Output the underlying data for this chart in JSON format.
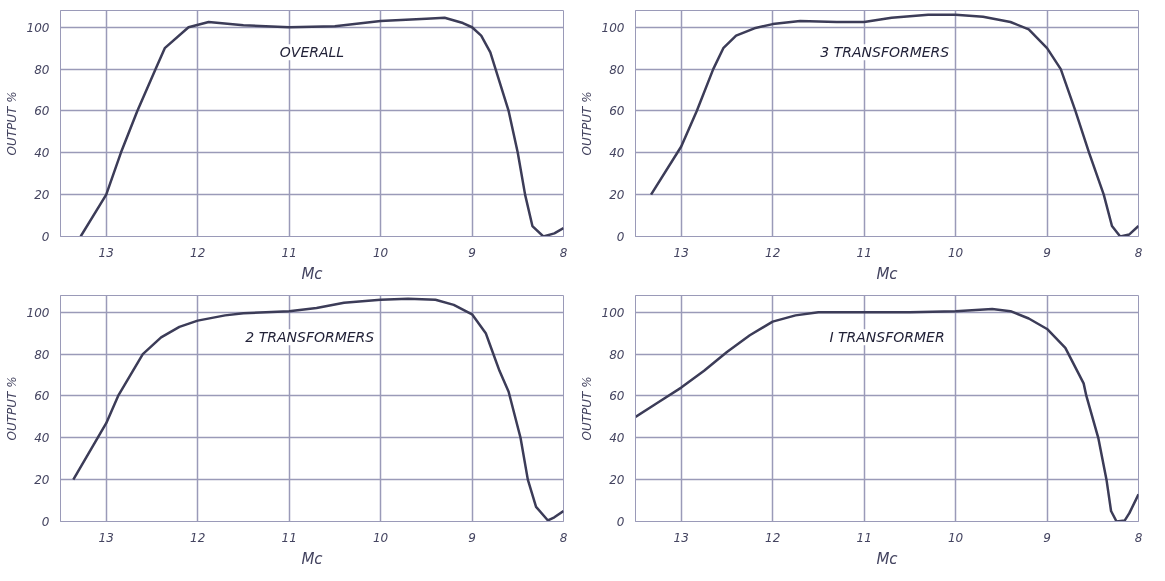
{
  "chart_data": [
    {
      "type": "line",
      "title": "OVERALL",
      "xlabel": "Mc",
      "ylabel": "OUTPUT %",
      "xlim": [
        13.5,
        8
      ],
      "ylim": [
        0,
        108
      ],
      "xticks": [
        13,
        12,
        11,
        10,
        9,
        8
      ],
      "yticks": [
        0,
        20,
        40,
        60,
        80,
        100
      ],
      "grid": true,
      "line_style": "solid",
      "series": [
        {
          "color": "#3c3c58",
          "x": [
            13.28,
            13.0,
            12.84,
            12.66,
            12.46,
            12.36,
            12.1,
            11.88,
            11.5,
            11.0,
            10.5,
            10.0,
            9.5,
            9.3,
            9.1,
            9.0,
            8.9,
            8.8,
            8.6,
            8.5,
            8.42,
            8.34,
            8.22,
            8.1,
            8.0
          ],
          "values": [
            0,
            20,
            40,
            60,
            80,
            90,
            100,
            102.5,
            101,
            100,
            100.5,
            103,
            104,
            104.5,
            102,
            100,
            96,
            88,
            60,
            40,
            20,
            5,
            0,
            1.5,
            4
          ]
        }
      ]
    },
    {
      "type": "line",
      "title": "3  TRANSFORMERS",
      "xlabel": "Mc",
      "ylabel": "OUTPUT %",
      "xlim": [
        13.5,
        8
      ],
      "ylim": [
        0,
        108
      ],
      "xticks": [
        13,
        12,
        11,
        10,
        9,
        8
      ],
      "yticks": [
        0,
        20,
        40,
        60,
        80,
        100
      ],
      "grid": true,
      "line_style": "solid",
      "series": [
        {
          "color": "#3c3c58",
          "x": [
            13.33,
            13.0,
            12.83,
            12.65,
            12.54,
            12.4,
            12.2,
            12.0,
            11.7,
            11.3,
            11.0,
            10.7,
            10.3,
            10.0,
            9.7,
            9.4,
            9.2,
            9.0,
            8.85,
            8.69,
            8.54,
            8.38,
            8.29,
            8.2,
            8.1,
            8.0
          ],
          "values": [
            20,
            43,
            60,
            80,
            90,
            96,
            99.5,
            101.5,
            103,
            102.5,
            102.5,
            104.5,
            106,
            106,
            105,
            102.5,
            99,
            90,
            80,
            60,
            40,
            20,
            5,
            0,
            1,
            5
          ]
        }
      ]
    },
    {
      "type": "line",
      "title": "2  TRANSFORMERS",
      "xlabel": "Mc",
      "ylabel": "OUTPUT %",
      "xlim": [
        13.5,
        8
      ],
      "ylim": [
        0,
        108
      ],
      "xticks": [
        13,
        12,
        11,
        10,
        9,
        8
      ],
      "yticks": [
        0,
        20,
        40,
        60,
        80,
        100
      ],
      "grid": true,
      "line_style": "solid",
      "series": [
        {
          "color": "#3c3c58",
          "x": [
            13.36,
            13.0,
            12.87,
            12.6,
            12.4,
            12.2,
            12.0,
            11.7,
            11.5,
            11.0,
            10.7,
            10.4,
            10.0,
            9.7,
            9.4,
            9.2,
            9.0,
            8.85,
            8.8,
            8.7,
            8.6,
            8.47,
            8.39,
            8.3,
            8.17,
            8.1,
            8.0
          ],
          "values": [
            20,
            47,
            60,
            80,
            88,
            93,
            96,
            98.5,
            99.5,
            100.5,
            102,
            104.5,
            106,
            106.5,
            106,
            103.5,
            99,
            90,
            84,
            72,
            62,
            40,
            20,
            7,
            0.5,
            2,
            5
          ]
        }
      ]
    },
    {
      "type": "line",
      "title": "I TRANSFORMER",
      "xlabel": "Mc",
      "ylabel": "OUTPUT %",
      "xlim": [
        13.5,
        8
      ],
      "ylim": [
        0,
        108
      ],
      "xticks": [
        13,
        12,
        11,
        10,
        9,
        8
      ],
      "yticks": [
        0,
        20,
        40,
        60,
        80,
        100
      ],
      "grid": true,
      "line_style": "solid",
      "series": [
        {
          "color": "#3c3c58",
          "x": [
            13.5,
            13.25,
            13.0,
            12.75,
            12.5,
            12.25,
            12.0,
            11.75,
            11.5,
            11.0,
            10.5,
            10.0,
            9.6,
            9.4,
            9.2,
            9.0,
            8.8,
            8.6,
            8.57,
            8.44,
            8.35,
            8.3,
            8.24,
            8.15,
            8.1,
            8.0
          ],
          "values": [
            50,
            57,
            64,
            72,
            81,
            89,
            95.5,
            98.5,
            100,
            100,
            100,
            100.5,
            101.5,
            100.5,
            97,
            92,
            83,
            66,
            60,
            40,
            20,
            5,
            0,
            0.5,
            4,
            13
          ]
        }
      ]
    }
  ]
}
